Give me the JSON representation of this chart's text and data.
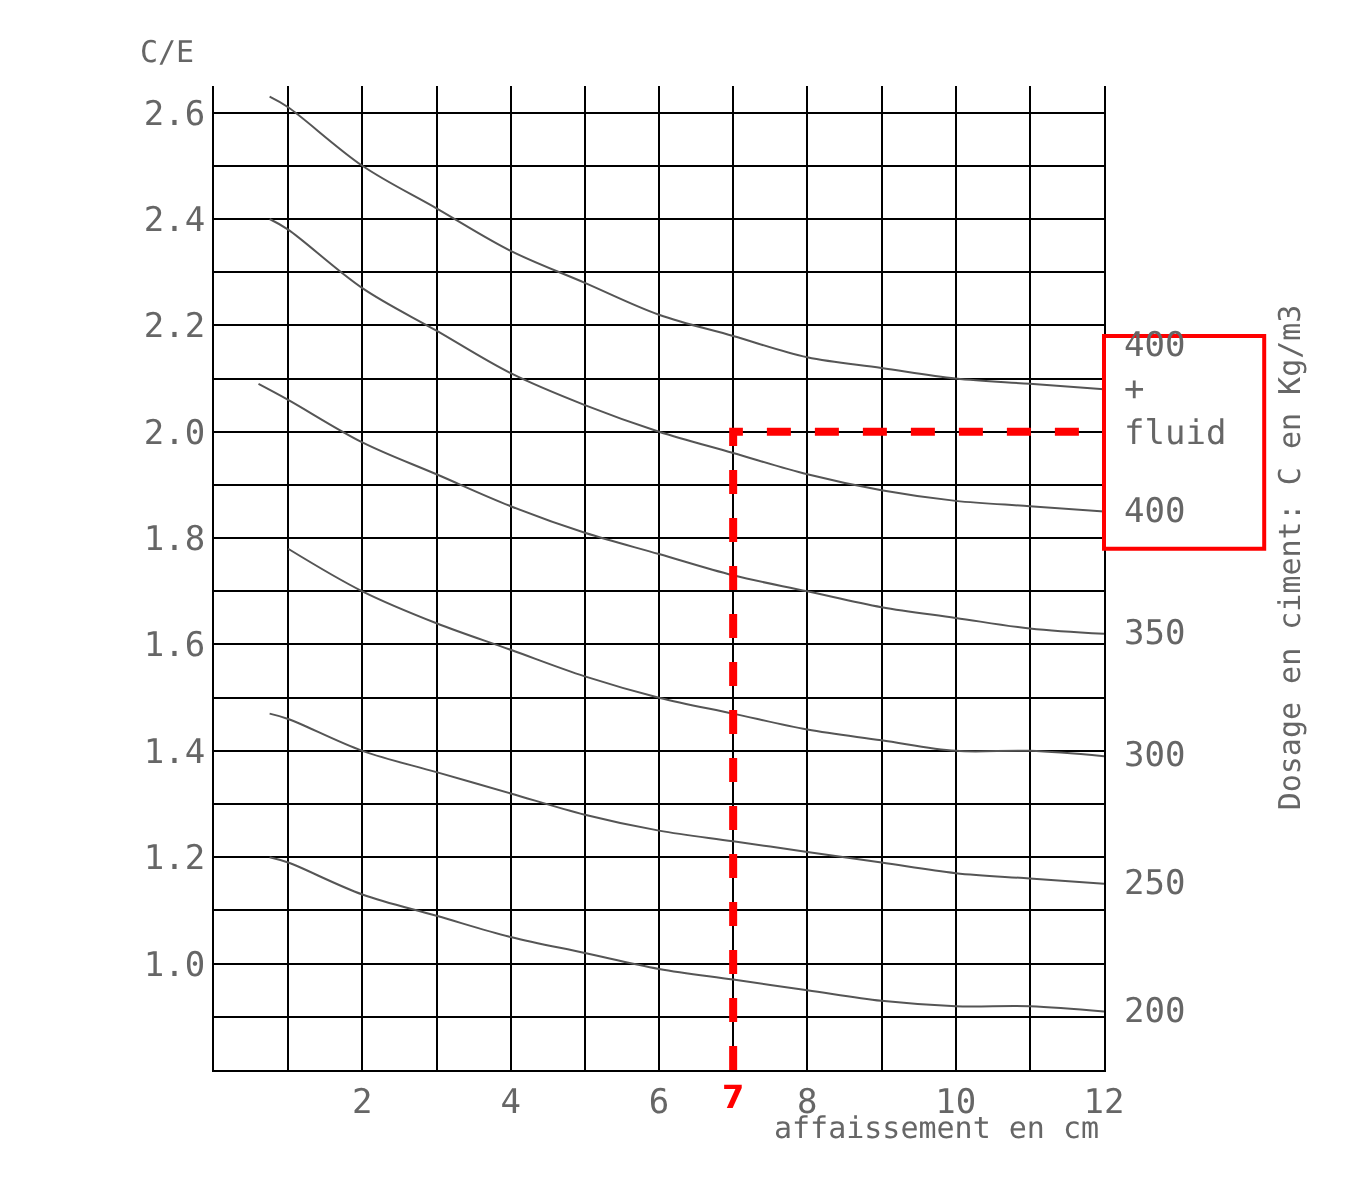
{
  "chart_data": {
    "type": "line",
    "xlabel": "affaissement en cm",
    "ylabel": "C/E",
    "x": [
      0.75,
      1,
      2,
      3,
      4,
      5,
      6,
      7,
      8,
      9,
      10,
      11,
      12
    ],
    "series": [
      {
        "name": "400\n+\nfluid",
        "color": "#555555",
        "values": [
          2.63,
          2.61,
          2.5,
          2.42,
          2.34,
          2.28,
          2.22,
          2.18,
          2.14,
          2.12,
          2.1,
          2.09,
          2.08
        ]
      },
      {
        "name": "400",
        "color": "#555555",
        "values": [
          2.4,
          2.38,
          2.27,
          2.19,
          2.11,
          2.05,
          2.0,
          1.96,
          1.92,
          1.89,
          1.87,
          1.86,
          1.85
        ]
      },
      {
        "name": "350",
        "color": "#555555",
        "x": [
          0.6,
          1,
          2,
          3,
          4,
          5,
          6,
          7,
          8,
          9,
          10,
          11,
          12
        ],
        "values": [
          2.09,
          2.06,
          1.98,
          1.92,
          1.86,
          1.81,
          1.77,
          1.73,
          1.7,
          1.67,
          1.65,
          1.63,
          1.62
        ]
      },
      {
        "name": "300",
        "color": "#555555",
        "x": [
          1,
          2,
          3,
          4,
          5,
          6,
          7,
          8,
          9,
          10,
          11,
          12
        ],
        "values": [
          1.78,
          1.7,
          1.64,
          1.59,
          1.54,
          1.5,
          1.47,
          1.44,
          1.42,
          1.4,
          1.4,
          1.39
        ]
      },
      {
        "name": "250",
        "color": "#555555",
        "values": [
          1.47,
          1.46,
          1.4,
          1.36,
          1.32,
          1.28,
          1.25,
          1.23,
          1.21,
          1.19,
          1.17,
          1.16,
          1.15
        ]
      },
      {
        "name": "200",
        "color": "#555555",
        "values": [
          1.2,
          1.19,
          1.13,
          1.09,
          1.05,
          1.02,
          0.99,
          0.97,
          0.95,
          0.93,
          0.92,
          0.92,
          0.91
        ]
      },
      {
        "color": "#ff0000",
        "line_style": "dashed",
        "x": [
          7,
          7,
          12
        ],
        "values": [
          0.8,
          2.0,
          2.0
        ]
      }
    ],
    "annotations": [
      {
        "text": "7",
        "x": 7,
        "y": 0.8
      },
      "Dosage en ciment: C en Kg/m3"
    ],
    "xlim": [
      0,
      12
    ],
    "ylim": [
      0.8,
      2.65
    ],
    "xticks": [
      {
        "value": 0,
        "label": null
      },
      {
        "value": 1,
        "label": null
      },
      2,
      {
        "value": 3,
        "label": null
      },
      4,
      {
        "value": 5,
        "label": null
      },
      6,
      {
        "value": 7,
        "label": null
      },
      8,
      {
        "value": 9,
        "label": null
      },
      10,
      {
        "value": 11,
        "label": null
      },
      12
    ],
    "yticks": [
      {
        "value": 0.8,
        "label": null
      },
      {
        "value": 0.9,
        "label": null
      },
      {
        "value": 1.0,
        "label": "1.0"
      },
      {
        "value": 1.1,
        "label": null
      },
      1.2,
      {
        "value": 1.3,
        "label": null
      },
      1.4,
      {
        "value": 1.5,
        "label": null
      },
      1.6,
      {
        "value": 1.7,
        "label": null
      },
      1.8,
      {
        "value": 1.9,
        "label": null
      },
      {
        "value": 2.0,
        "label": "2.0"
      },
      {
        "value": 2.1,
        "label": null
      },
      2.2,
      {
        "value": 2.3,
        "label": null
      },
      2.4,
      {
        "value": 2.5,
        "label": null
      },
      2.6
    ],
    "grid": true,
    "legend": false,
    "marker": "none",
    "line_style": "solid"
  }
}
